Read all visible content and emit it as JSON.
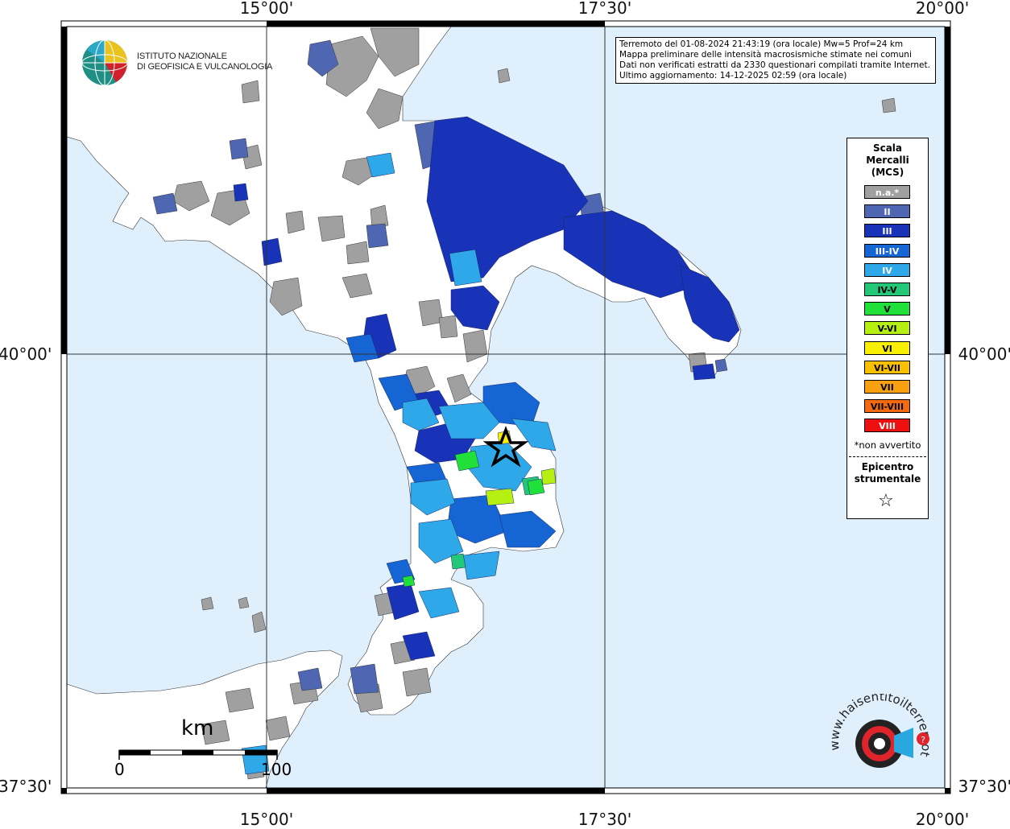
{
  "header": {
    "lines": [
      "Terremoto del 01-08-2024 21:43:19 (ora locale) Mw=5 Prof=24 km",
      "Mappa preliminare delle intensità macrosismiche stimate nei comuni",
      "Dati non verificati estratti da 2330 questionari compilati tramite Internet.",
      "Ultimo aggiornamento: 14-12-2025 02:59 (ora locale)"
    ]
  },
  "institute": {
    "line1": "ISTITUTO NAZIONALE",
    "line2": "DI GEOFISICA E VULCANOLOGIA"
  },
  "coords": {
    "lon": [
      "15°00'",
      "17°30'",
      "20°00'"
    ],
    "lat": [
      "40°00'",
      "37°30'"
    ]
  },
  "legend": {
    "title_1": "Scala",
    "title_2": "Mercalli",
    "title_3": "(MCS)",
    "items": [
      {
        "label": "n.a.*",
        "color": "#a0a0a0",
        "text": "#ffffff"
      },
      {
        "label": "II",
        "color": "#4f67b3",
        "text": "#ffffff"
      },
      {
        "label": "III",
        "color": "#1832b8",
        "text": "#ffffff"
      },
      {
        "label": "III-IV",
        "color": "#1566d4",
        "text": "#ffffff"
      },
      {
        "label": "IV",
        "color": "#2ea8e8",
        "text": "#ffffff"
      },
      {
        "label": "IV-V",
        "color": "#22c878",
        "text": "#000000"
      },
      {
        "label": "V",
        "color": "#22e03a",
        "text": "#000000"
      },
      {
        "label": "V-VI",
        "color": "#b6f012",
        "text": "#000000"
      },
      {
        "label": "VI",
        "color": "#f8f000",
        "text": "#000000"
      },
      {
        "label": "VI-VII",
        "color": "#f8c000",
        "text": "#000000"
      },
      {
        "label": "VII",
        "color": "#f8a010",
        "text": "#000000"
      },
      {
        "label": "VII-VIII",
        "color": "#f46a10",
        "text": "#000000"
      },
      {
        "label": "VIII",
        "color": "#ee1010",
        "text": "#ffffff"
      }
    ],
    "note": "*non avvertito",
    "epicentre_1": "Epicentro",
    "epicentre_2": "strumentale"
  },
  "scale": {
    "unit": "km",
    "start": "0",
    "end": "100"
  },
  "hsi_logo": {
    "ring": "www.haisentitoilterremoto.it"
  },
  "colors": {
    "sea": "#dfeffc",
    "land": "#ffffff",
    "gray": "#a0a0a0",
    "epicentre": "#000000"
  }
}
